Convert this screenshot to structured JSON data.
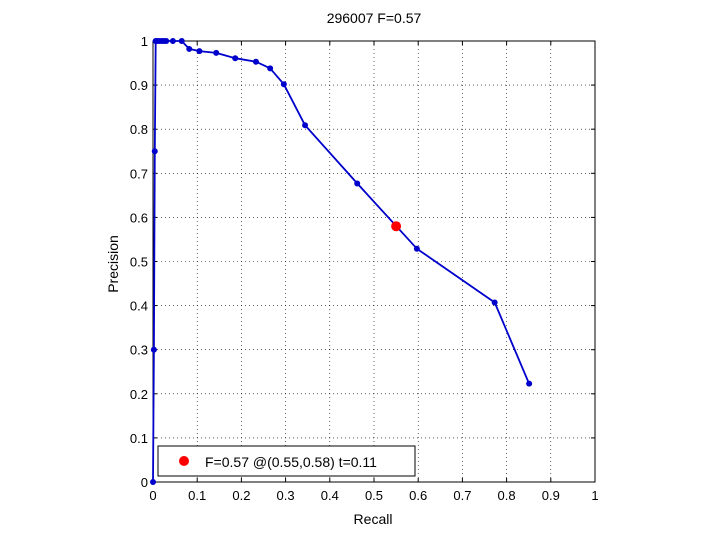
{
  "chart_data": {
    "type": "line",
    "title": "296007 F=0.57",
    "xlabel": "Recall",
    "ylabel": "Precision",
    "xlim": [
      0,
      1
    ],
    "ylim": [
      0,
      1
    ],
    "xticks": [
      "0",
      "0.1",
      "0.2",
      "0.3",
      "0.4",
      "0.5",
      "0.6",
      "0.7",
      "0.8",
      "0.9",
      "1"
    ],
    "yticks": [
      "0",
      "0.1",
      "0.2",
      "0.3",
      "0.4",
      "0.5",
      "0.6",
      "0.7",
      "0.8",
      "0.9",
      "1"
    ],
    "grid": true,
    "legend_position": "bottom-left",
    "series": [
      {
        "color": "#0000cc",
        "x": [
          0,
          0.002,
          0.004,
          0.006,
          0.01,
          0.015,
          0.02,
          0.025,
          0.03,
          0.045,
          0.065,
          0.082,
          0.105,
          0.143,
          0.186,
          0.233,
          0.265,
          0.296,
          0.344,
          0.462,
          0.597,
          0.773,
          0.851
        ],
        "y": [
          0,
          0.3,
          0.75,
          1.0,
          1.0,
          1.0,
          1.0,
          1.0,
          1.0,
          1.0,
          1.0,
          0.982,
          0.977,
          0.973,
          0.961,
          0.953,
          0.938,
          0.902,
          0.809,
          0.677,
          0.529,
          0.407,
          0.223
        ]
      }
    ],
    "best_point": {
      "x": 0.55,
      "y": 0.58,
      "color": "#ff0000",
      "label": "F=0.57 @(0.55,0.58) t=0.11"
    }
  }
}
